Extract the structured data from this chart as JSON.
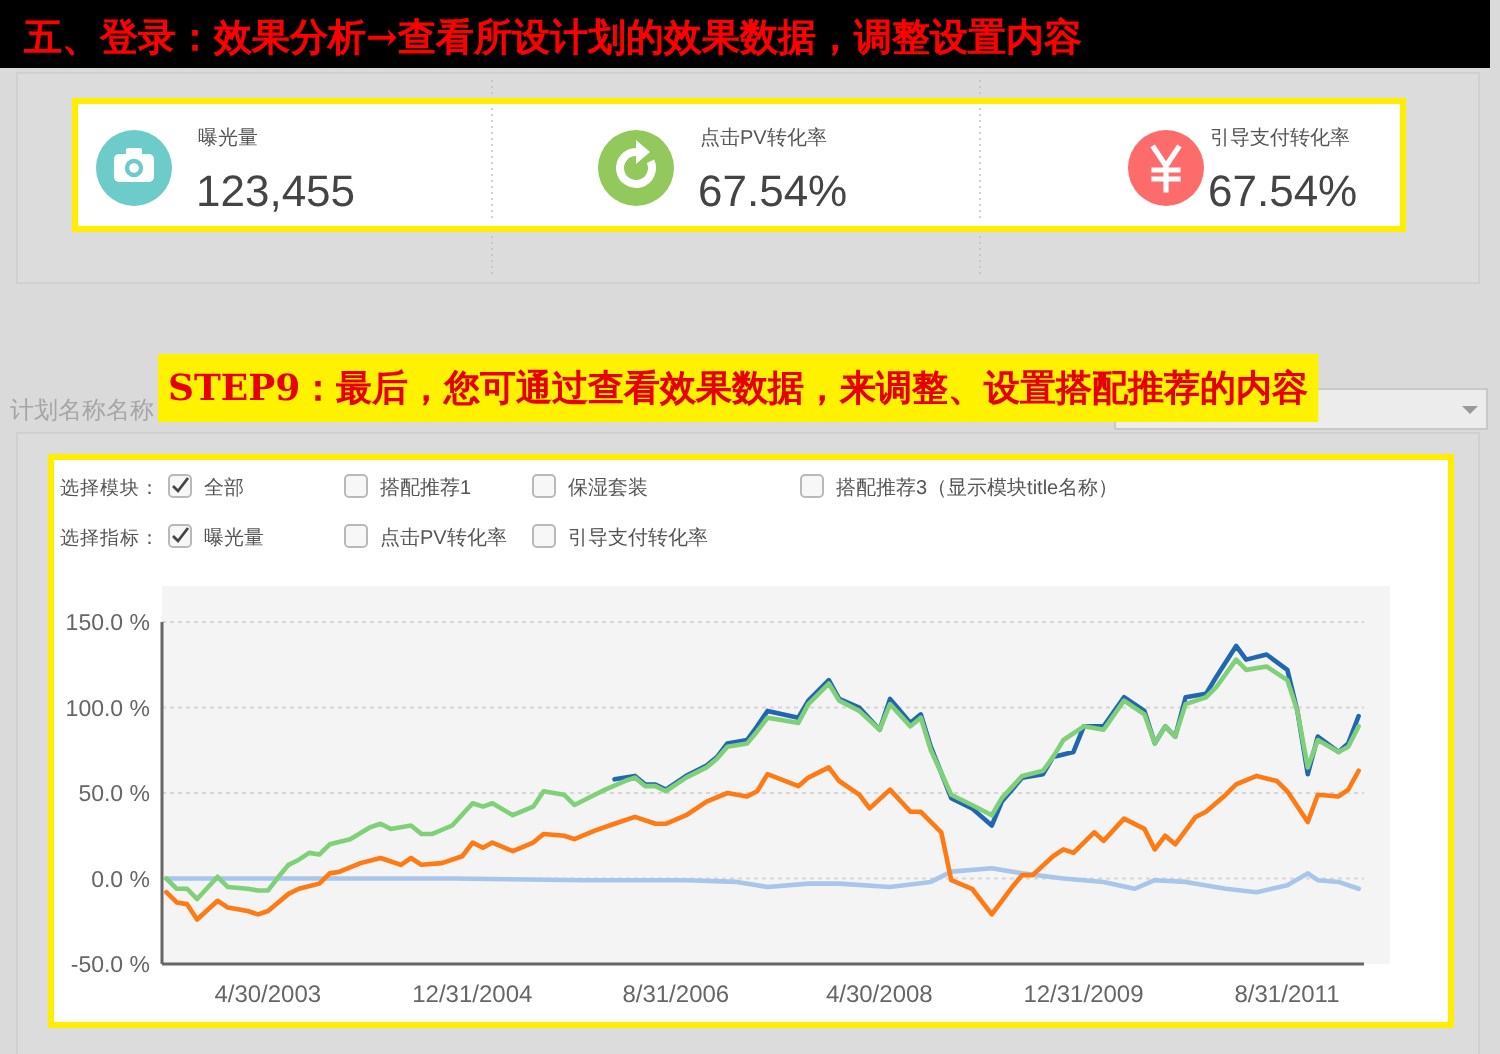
{
  "chart_data": [
    {
      "type": "other",
      "title": "五、登录：效果分析→查看所设计划的效果数据，调整设置内容",
      "annotations": [
        "曝光量",
        "123,455",
        "点击PV转化率",
        "67.54%",
        "引导支付转化率",
        "67.54%"
      ]
    },
    {
      "type": "line",
      "title": "STEP9：最后，您可通过查看效果数据，来调整、设置搭配推荐的内容",
      "annotations": [
        "计划名称名称",
        "选择模块：",
        "全部",
        "搭配推荐1",
        "保湿套装",
        "搭配推荐3（显示模块title名称）",
        "选择指标：",
        "曝光量",
        "点击PV转化率",
        "引导支付转化率"
      ],
      "xlim": [
        "2002-06-18",
        "2012-04-17"
      ],
      "xticks": [
        {
          "value": "2003-04-30",
          "label": "4/30/2003"
        },
        {
          "value": "2004-12-31",
          "label": "12/31/2004"
        },
        {
          "value": "2006-08-31",
          "label": "8/31/2006"
        },
        {
          "value": "2008-04-30",
          "label": "4/30/2008"
        },
        {
          "value": "2009-12-31",
          "label": "12/31/2009"
        },
        {
          "value": "2011-08-31",
          "label": "8/31/2011"
        }
      ],
      "ylim": [
        -50,
        150
      ],
      "yticks": [
        {
          "value": -50,
          "label": "-50.0 %"
        },
        {
          "value": 0,
          "label": "0.0 %"
        },
        {
          "value": 50,
          "label": "50.0 %"
        },
        {
          "value": 100,
          "label": "100.0 %"
        },
        {
          "value": 150,
          "label": "150.0 %"
        }
      ],
      "grid": "y",
      "series": [
        {
          "color": "#a9c5ea",
          "x": [
            "2002-07",
            "2003-05",
            "2004-11",
            "2005-12",
            "2006-10",
            "2007-03",
            "2007-06",
            "2007-10",
            "2008-01",
            "2008-06",
            "2008-10",
            "2008-12",
            "2009-04",
            "2009-07",
            "2009-11",
            "2010-03",
            "2010-06",
            "2010-08",
            "2010-11",
            "2011-03",
            "2011-06",
            "2011-09",
            "2011-11",
            "2011-12",
            "2012-02",
            "2012-04"
          ],
          "values": [
            0,
            0,
            0,
            -1,
            -1,
            -2,
            -5,
            -3,
            -3,
            -5,
            -2,
            4,
            6,
            3,
            0,
            -2,
            -6,
            -1,
            -2,
            -6,
            -8,
            -4,
            3,
            -1,
            -2,
            -6
          ]
        },
        {
          "color": "#ff7a12",
          "x": [
            "2002-07",
            "2002-08",
            "2002-09",
            "2002-10",
            "2002-12",
            "2003-01",
            "2003-03",
            "2003-04",
            "2003-05",
            "2003-07",
            "2003-08",
            "2003-10",
            "2003-11",
            "2003-12",
            "2004-02",
            "2004-04",
            "2004-06",
            "2004-07",
            "2004-08",
            "2004-10",
            "2004-12",
            "2005-01",
            "2005-02",
            "2005-03",
            "2005-05",
            "2005-07",
            "2005-08",
            "2005-10",
            "2005-11",
            "2006-01",
            "2006-03",
            "2006-05",
            "2006-07",
            "2006-08",
            "2006-10",
            "2006-12",
            "2007-02",
            "2007-04",
            "2007-05",
            "2007-06",
            "2007-09",
            "2007-10",
            "2007-12",
            "2008-01",
            "2008-03",
            "2008-04",
            "2008-06",
            "2008-08",
            "2008-09",
            "2008-11",
            "2008-12",
            "2009-02",
            "2009-04",
            "2009-06",
            "2009-07",
            "2009-08",
            "2009-10",
            "2009-11",
            "2009-12",
            "2010-02",
            "2010-03",
            "2010-05",
            "2010-07",
            "2010-08",
            "2010-09",
            "2010-10",
            "2010-12",
            "2011-01",
            "2011-03",
            "2011-04",
            "2011-06",
            "2011-08",
            "2011-09",
            "2011-11",
            "2011-12",
            "2012-02",
            "2012-03",
            "2012-04"
          ],
          "values": [
            -8,
            -14,
            -15,
            -24,
            -13,
            -17,
            -19,
            -21,
            -19,
            -9,
            -6,
            -3,
            3,
            4,
            9,
            12,
            8,
            12,
            8,
            9,
            13,
            21,
            18,
            21,
            16,
            21,
            26,
            25,
            23,
            28,
            32,
            36,
            32,
            32,
            37,
            45,
            50,
            48,
            51,
            61,
            54,
            59,
            65,
            57,
            49,
            41,
            52,
            39,
            39,
            27,
            -1,
            -6,
            -21,
            -5,
            2,
            2,
            13,
            17,
            15,
            27,
            22,
            35,
            29,
            17,
            25,
            20,
            36,
            39,
            49,
            55,
            60,
            57,
            51,
            33,
            49,
            48,
            52,
            63
          ]
        },
        {
          "color": "#2166b0",
          "x": [
            "2006-03",
            "2006-05",
            "2006-06",
            "2006-07",
            "2006-08",
            "2006-10",
            "2006-12",
            "2007-01",
            "2007-02",
            "2007-04",
            "2007-05",
            "2007-06",
            "2007-09",
            "2007-10",
            "2007-12",
            "2008-01",
            "2008-03",
            "2008-05",
            "2008-06",
            "2008-08",
            "2008-09",
            "2008-10",
            "2008-12",
            "2009-02",
            "2009-04",
            "2009-05",
            "2009-07",
            "2009-09",
            "2009-10",
            "2009-12",
            "2010-01",
            "2010-03",
            "2010-05",
            "2010-07",
            "2010-08",
            "2010-09",
            "2010-10",
            "2010-11",
            "2011-01",
            "2011-02",
            "2011-04",
            "2011-05",
            "2011-07",
            "2011-09",
            "2011-10",
            "2011-11",
            "2011-12",
            "2012-02",
            "2012-03",
            "2012-04"
          ],
          "values": [
            58,
            60,
            55,
            55,
            52,
            60,
            66,
            71,
            79,
            81,
            89,
            98,
            94,
            104,
            116,
            105,
            100,
            87,
            105,
            91,
            96,
            77,
            47,
            41,
            31,
            45,
            59,
            61,
            71,
            74,
            89,
            89,
            106,
            98,
            79,
            89,
            83,
            106,
            108,
            118,
            136,
            128,
            131,
            122,
            98,
            61,
            83,
            74,
            79,
            95
          ]
        },
        {
          "color": "#80d07a",
          "x": [
            "2002-07",
            "2002-08",
            "2002-09",
            "2002-10",
            "2002-12",
            "2003-01",
            "2003-03",
            "2003-04",
            "2003-05",
            "2003-06",
            "2003-07",
            "2003-08",
            "2003-09",
            "2003-10",
            "2003-11",
            "2004-01",
            "2004-03",
            "2004-04",
            "2004-05",
            "2004-07",
            "2004-08",
            "2004-09",
            "2004-11",
            "2005-01",
            "2005-02",
            "2005-03",
            "2005-05",
            "2005-07",
            "2005-08",
            "2005-10",
            "2005-11",
            "2006-01",
            "2006-02",
            "2006-04",
            "2006-05",
            "2006-06",
            "2006-07",
            "2006-08",
            "2006-10",
            "2006-12",
            "2007-01",
            "2007-02",
            "2007-04",
            "2007-05",
            "2007-06",
            "2007-09",
            "2007-10",
            "2007-12",
            "2008-01",
            "2008-03",
            "2008-05",
            "2008-06",
            "2008-08",
            "2008-09",
            "2008-10",
            "2008-12",
            "2009-02",
            "2009-04",
            "2009-05",
            "2009-07",
            "2009-09",
            "2009-10",
            "2009-11",
            "2010-01",
            "2010-03",
            "2010-05",
            "2010-07",
            "2010-08",
            "2010-09",
            "2010-10",
            "2010-11",
            "2011-01",
            "2011-02",
            "2011-04",
            "2011-05",
            "2011-07",
            "2011-09",
            "2011-10",
            "2011-11",
            "2011-12",
            "2012-02",
            "2012-03",
            "2012-04"
          ],
          "values": [
            0,
            -6,
            -6,
            -12,
            1,
            -5,
            -6,
            -7,
            -7,
            1,
            8,
            11,
            15,
            14,
            20,
            23,
            30,
            32,
            29,
            31,
            26,
            26,
            31,
            44,
            42,
            44,
            37,
            42,
            51,
            49,
            43,
            49,
            52,
            57,
            59,
            54,
            54,
            51,
            59,
            65,
            70,
            77,
            79,
            86,
            94,
            91,
            102,
            114,
            104,
            98,
            87,
            102,
            89,
            94,
            75,
            49,
            43,
            37,
            47,
            60,
            63,
            71,
            81,
            89,
            87,
            104,
            96,
            79,
            89,
            83,
            102,
            106,
            112,
            128,
            122,
            124,
            116,
            98,
            65,
            81,
            74,
            77,
            89
          ]
        }
      ]
    }
  ]
}
